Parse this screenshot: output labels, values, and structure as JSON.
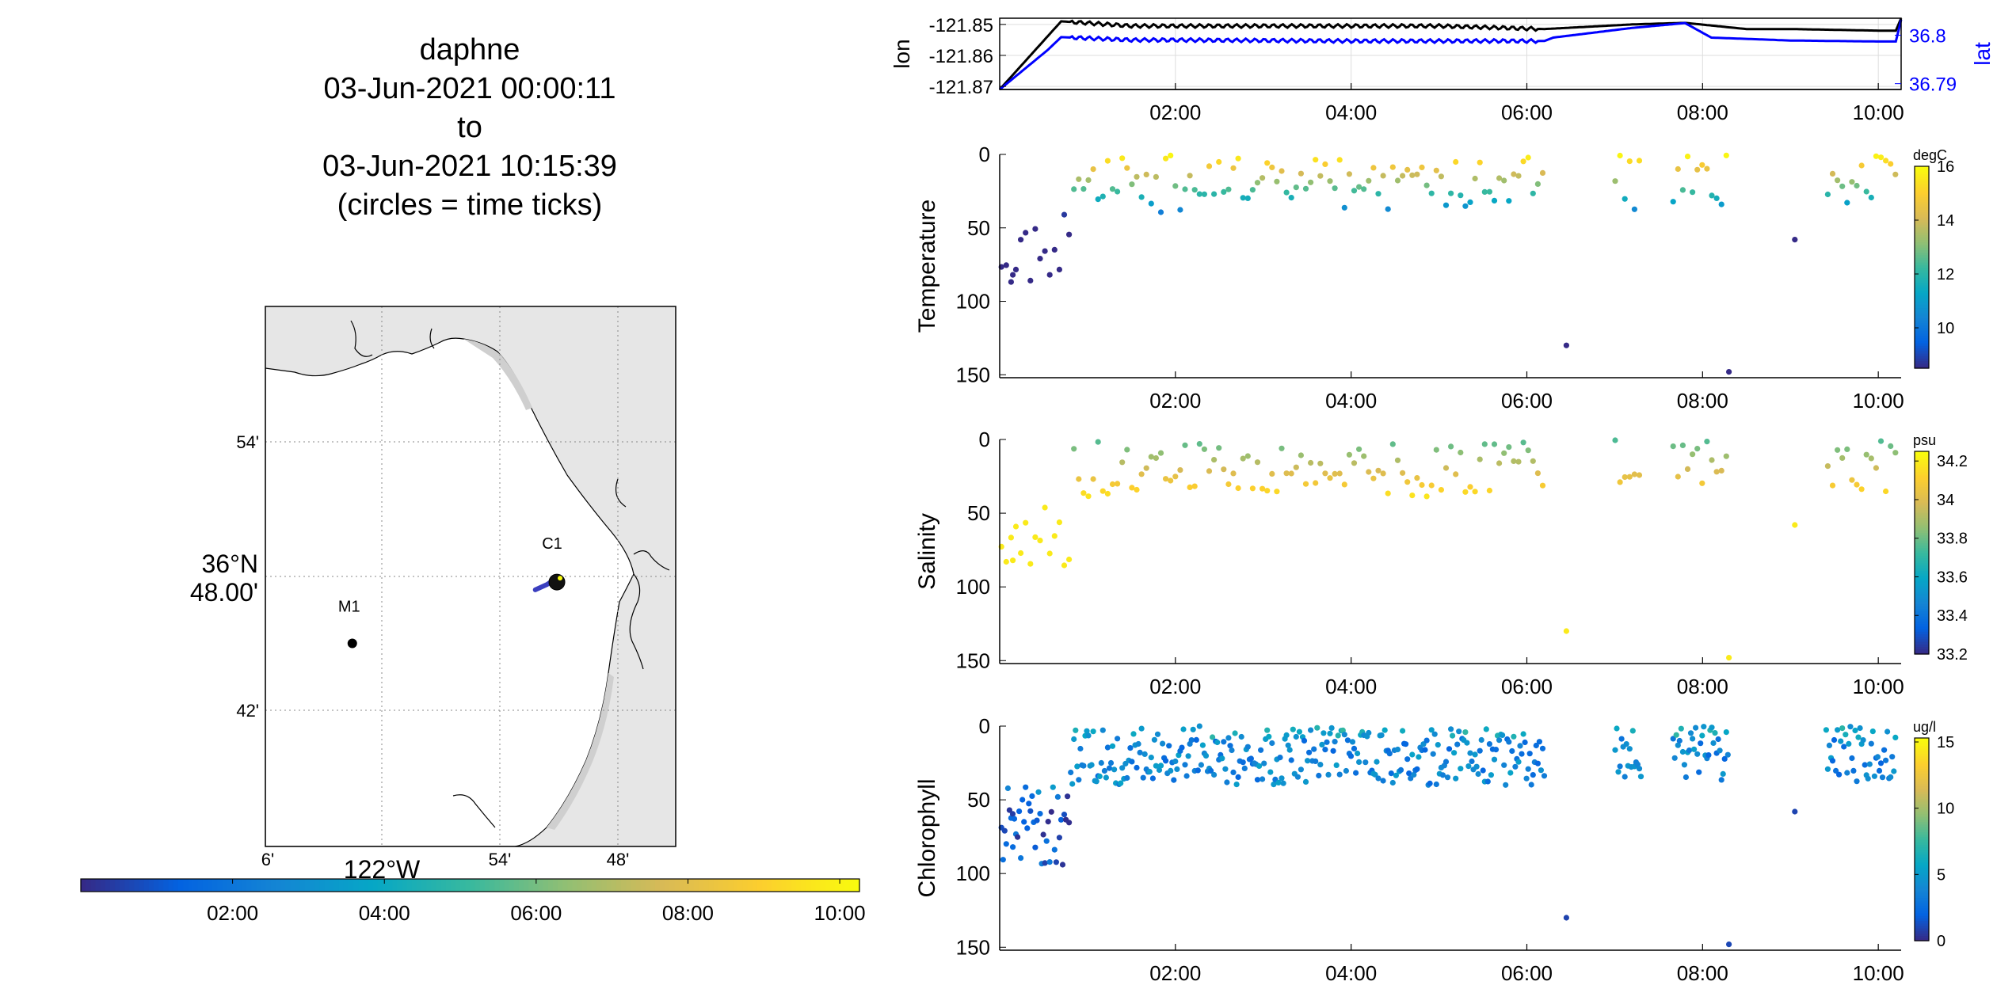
{
  "title": {
    "lines": [
      "daphne",
      "03-Jun-2021 00:00:11",
      "to",
      "03-Jun-2021 10:15:39",
      "(circles = time ticks)"
    ]
  },
  "colors": {
    "lon_line": "#000000",
    "lat_line": "#0000ff",
    "land": "#e6e6e6",
    "grid": "#888888",
    "parula": [
      "#352a87",
      "#0363e1",
      "#1485d4",
      "#06a7c6",
      "#38b99e",
      "#92bf73",
      "#d9ba56",
      "#fcce2e",
      "#f9fb0e"
    ]
  },
  "map": {
    "lat_ticks": [
      "54'",
      "36°N 48.00'",
      "42'"
    ],
    "lon_ticks": [
      "6'",
      "54'",
      "48'"
    ],
    "lon_main_label": "122°W",
    "stations": [
      {
        "name": "M1",
        "lon": -122.025,
        "lat": 36.75
      },
      {
        "name": "C1",
        "lon": -121.853,
        "lat": 36.797
      }
    ],
    "track": {
      "lon": [
        -121.87,
        -121.86,
        -121.855,
        -121.852
      ],
      "lat": [
        36.79,
        36.794,
        36.797,
        36.799
      ]
    },
    "time_colorbar_ticks": [
      "02:00",
      "04:00",
      "06:00",
      "08:00",
      "10:00"
    ]
  },
  "chart_data": [
    {
      "type": "line",
      "name": "position",
      "x_ticks": [
        "02:00",
        "04:00",
        "06:00",
        "08:00",
        "10:00"
      ],
      "x_ticks_hours": [
        2,
        4,
        6,
        8,
        10
      ],
      "xlim_hours": [
        0,
        10.26
      ],
      "ylabel": "lon",
      "ylabel_right": "lat",
      "y_ticks": [
        "-121.85",
        "-121.86",
        "-121.87"
      ],
      "y_ticks_right": [
        "36.8",
        "36.79"
      ],
      "ylim": [
        -121.871,
        -121.848
      ],
      "ylim_right": [
        36.7888,
        36.8035
      ],
      "series": [
        {
          "name": "lon",
          "x": [
            0,
            0.7,
            1.5,
            2.0,
            3.0,
            4.0,
            5.0,
            6.2,
            7.2,
            7.8,
            8.5,
            9.0,
            10.0,
            10.2,
            10.26
          ],
          "y": [
            -121.871,
            -121.849,
            -121.8505,
            -121.8505,
            -121.8505,
            -121.8505,
            -121.8505,
            -121.8515,
            -121.85,
            -121.8495,
            -121.8515,
            -121.8515,
            -121.852,
            -121.852,
            -121.848
          ]
        },
        {
          "name": "lat",
          "x": [
            0,
            0.55,
            0.7,
            1.5,
            2.0,
            3.0,
            4.0,
            5.0,
            6.2,
            6.3,
            7.2,
            7.8,
            8.1,
            9.0,
            10.0,
            10.2,
            10.26
          ],
          "y": [
            36.7888,
            36.797,
            36.7996,
            36.799,
            36.799,
            36.7989,
            36.7988,
            36.7988,
            36.7988,
            36.7995,
            36.8015,
            36.8025,
            36.7995,
            36.7989,
            36.7987,
            36.7987,
            36.8032
          ]
        }
      ]
    },
    {
      "type": "scatter",
      "name": "temperature",
      "ylabel": "Temperature",
      "y_ticks": [
        0,
        50,
        100,
        150
      ],
      "ylim": [
        0,
        152
      ],
      "x_ticks": [
        "02:00",
        "04:00",
        "06:00",
        "08:00",
        "10:00"
      ],
      "colorbar": {
        "label": "degC",
        "ticks": [
          10,
          12,
          14,
          16
        ],
        "range": [
          8.5,
          16
        ]
      }
    },
    {
      "type": "scatter",
      "name": "salinity",
      "ylabel": "Salinity",
      "y_ticks": [
        0,
        50,
        100,
        150
      ],
      "ylim": [
        0,
        152
      ],
      "x_ticks": [
        "02:00",
        "04:00",
        "06:00",
        "08:00",
        "10:00"
      ],
      "colorbar": {
        "label": "psu",
        "ticks": [
          33.2,
          33.4,
          33.6,
          33.8,
          34,
          34.2
        ],
        "range": [
          33.2,
          34.25
        ]
      }
    },
    {
      "type": "scatter",
      "name": "chlorophyll",
      "ylabel": "Chlorophyll",
      "y_ticks": [
        0,
        50,
        100,
        150
      ],
      "ylim": [
        0,
        152
      ],
      "x_ticks": [
        "02:00",
        "04:00",
        "06:00",
        "08:00",
        "10:00"
      ],
      "colorbar": {
        "label": "ug/l",
        "ticks": [
          0,
          5,
          10,
          15
        ],
        "range": [
          0,
          15.3
        ]
      }
    }
  ]
}
